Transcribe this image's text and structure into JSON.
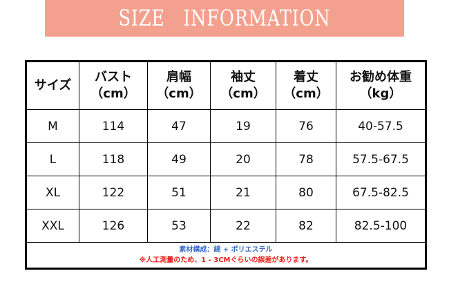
{
  "title": "SIZE　INFORMATION",
  "headers": [
    [
      "サイズ",
      ""
    ],
    [
      "バスト",
      "（cm）"
    ],
    [
      "肩幅",
      "（cm）"
    ],
    [
      "袖丈",
      "（cm）"
    ],
    [
      "着丈",
      "（cm）"
    ],
    [
      "お勧め体重",
      "（kg）"
    ]
  ],
  "rows": [
    [
      "M",
      "114",
      "47",
      "19",
      "76",
      "40-57.5"
    ],
    [
      "L",
      "118",
      "49",
      "20",
      "78",
      "57.5-67.5"
    ],
    [
      "XL",
      "122",
      "51",
      "21",
      "80",
      "67.5-82.5"
    ],
    [
      "XXL",
      "126",
      "53",
      "22",
      "82",
      "82.5-100"
    ]
  ],
  "notes": {
    "material": "素材構成：綿 + ポリエステル",
    "disclaimer": "※人工測量のため、1 - 3CMぐらいの誤差があります。"
  },
  "colors": {
    "banner": "#f4a08e",
    "material_note": "#3a6fc4",
    "disclaimer_note": "#e8201c"
  }
}
